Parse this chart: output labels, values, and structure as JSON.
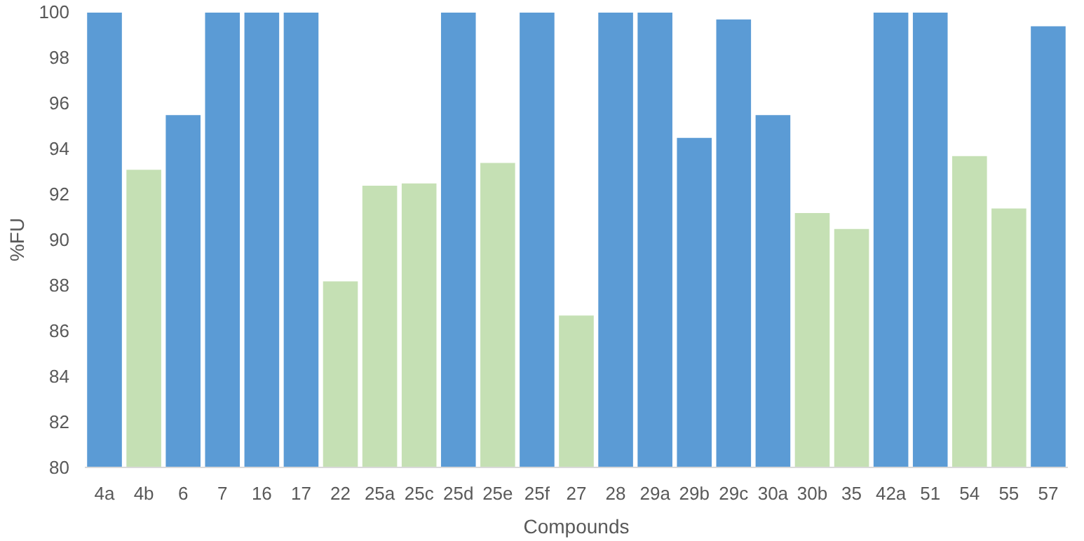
{
  "chart_data": {
    "type": "bar",
    "xlabel": "Compounds",
    "ylabel": "%FU",
    "categories": [
      "4a",
      "4b",
      "6",
      "7",
      "16",
      "17",
      "22",
      "25a",
      "25c",
      "25d",
      "25e",
      "25f",
      "27",
      "28",
      "29a",
      "29b",
      "29c",
      "30a",
      "30b",
      "35",
      "42a",
      "51",
      "54",
      "55",
      "57"
    ],
    "values": [
      100,
      93.1,
      95.5,
      100,
      100,
      100,
      88.2,
      92.4,
      92.5,
      100,
      93.4,
      100,
      86.7,
      100,
      100,
      94.5,
      99.7,
      95.5,
      91.2,
      90.5,
      100,
      100,
      93.7,
      91.4,
      99.4
    ],
    "colors": [
      "#5b9bd5",
      "#c5e0b4",
      "#5b9bd5",
      "#5b9bd5",
      "#5b9bd5",
      "#5b9bd5",
      "#c5e0b4",
      "#c5e0b4",
      "#c5e0b4",
      "#5b9bd5",
      "#c5e0b4",
      "#5b9bd5",
      "#c5e0b4",
      "#5b9bd5",
      "#5b9bd5",
      "#5b9bd5",
      "#5b9bd5",
      "#5b9bd5",
      "#c5e0b4",
      "#c5e0b4",
      "#5b9bd5",
      "#5b9bd5",
      "#c5e0b4",
      "#c5e0b4",
      "#5b9bd5"
    ],
    "ylim": [
      80,
      100
    ],
    "yticks": [
      80,
      82,
      84,
      86,
      88,
      90,
      92,
      94,
      96,
      98,
      100
    ],
    "grid": false
  }
}
